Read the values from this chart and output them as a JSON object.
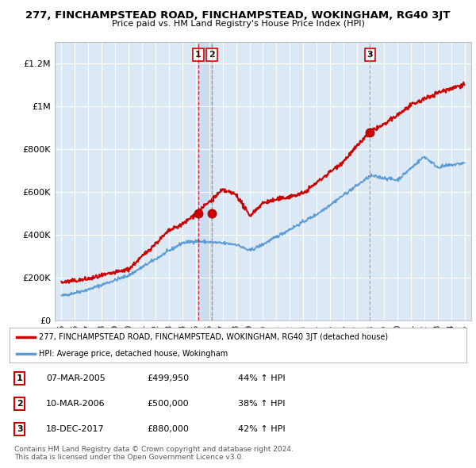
{
  "title": "277, FINCHAMPSTEAD ROAD, FINCHAMPSTEAD, WOKINGHAM, RG40 3JT",
  "subtitle": "Price paid vs. HM Land Registry's House Price Index (HPI)",
  "red_label": "277, FINCHAMPSTEAD ROAD, FINCHAMPSTEAD, WOKINGHAM, RG40 3JT (detached house)",
  "blue_label": "HPI: Average price, detached house, Wokingham",
  "sales": [
    {
      "num": 1,
      "date": "07-MAR-2005",
      "year": 2005.18,
      "price": 499950,
      "pct": "44%",
      "dir": "↑"
    },
    {
      "num": 2,
      "date": "10-MAR-2006",
      "year": 2006.19,
      "price": 500000,
      "pct": "38%",
      "dir": "↑"
    },
    {
      "num": 3,
      "date": "18-DEC-2017",
      "year": 2017.96,
      "price": 880000,
      "pct": "42%",
      "dir": "↑"
    }
  ],
  "footer1": "Contains HM Land Registry data © Crown copyright and database right 2024.",
  "footer2": "This data is licensed under the Open Government Licence v3.0.",
  "ylim": [
    0,
    1300000
  ],
  "xlim": [
    1994.5,
    2025.5
  ],
  "yticks": [
    0,
    200000,
    400000,
    600000,
    800000,
    1000000,
    1200000
  ],
  "ytick_labels": [
    "£0",
    "£200K",
    "£400K",
    "£600K",
    "£800K",
    "£1M",
    "£1.2M"
  ],
  "xticks": [
    1995,
    1996,
    1997,
    1998,
    1999,
    2000,
    2001,
    2002,
    2003,
    2004,
    2005,
    2006,
    2007,
    2008,
    2009,
    2010,
    2011,
    2012,
    2013,
    2014,
    2015,
    2016,
    2017,
    2018,
    2019,
    2020,
    2021,
    2022,
    2023,
    2024,
    2025
  ],
  "xtick_labels": [
    "95",
    "96",
    "97",
    "98",
    "99",
    "00",
    "01",
    "02",
    "03",
    "04",
    "05",
    "06",
    "07",
    "08",
    "09",
    "10",
    "11",
    "12",
    "13",
    "14",
    "15",
    "16",
    "17",
    "18",
    "19",
    "20",
    "21",
    "22",
    "23",
    "24",
    "25"
  ],
  "red_color": "#cc0000",
  "blue_color": "#5b9bd5",
  "background_chart": "#dce9f5",
  "background_fig": "#ffffff",
  "grid_color": "#ffffff",
  "shade_color": "#c5d9ef"
}
